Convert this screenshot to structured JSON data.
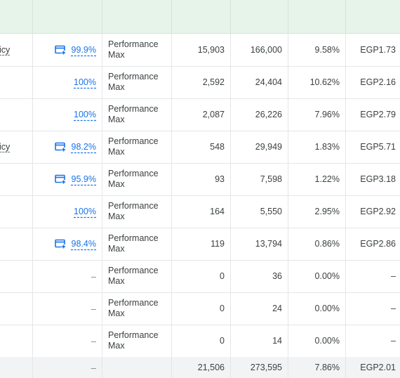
{
  "rows": [
    {
      "name": "icy",
      "icon": "add-recommendation-icon",
      "opt": "99.9%",
      "type1": "Performance",
      "type2": "Max",
      "clicks": "15,903",
      "impr": "166,000",
      "ctr": "9.58%",
      "cpc": "EGP1.73"
    },
    {
      "name": "",
      "icon": "",
      "opt": "100%",
      "type1": "Performance",
      "type2": "Max",
      "clicks": "2,592",
      "impr": "24,404",
      "ctr": "10.62%",
      "cpc": "EGP2.16"
    },
    {
      "name": "",
      "icon": "",
      "opt": "100%",
      "type1": "Performance",
      "type2": "Max",
      "clicks": "2,087",
      "impr": "26,226",
      "ctr": "7.96%",
      "cpc": "EGP2.79"
    },
    {
      "name": "icy",
      "icon": "add-recommendation-icon",
      "opt": "98.2%",
      "type1": "Performance",
      "type2": "Max",
      "clicks": "548",
      "impr": "29,949",
      "ctr": "1.83%",
      "cpc": "EGP5.71"
    },
    {
      "name": "",
      "icon": "add-recommendation-icon",
      "opt": "95.9%",
      "type1": "Performance",
      "type2": "Max",
      "clicks": "93",
      "impr": "7,598",
      "ctr": "1.22%",
      "cpc": "EGP3.18"
    },
    {
      "name": "",
      "icon": "",
      "opt": "100%",
      "type1": "Performance",
      "type2": "Max",
      "clicks": "164",
      "impr": "5,550",
      "ctr": "2.95%",
      "cpc": "EGP2.92"
    },
    {
      "name": "",
      "icon": "add-recommendation-icon",
      "opt": "98.4%",
      "type1": "Performance",
      "type2": "Max",
      "clicks": "119",
      "impr": "13,794",
      "ctr": "0.86%",
      "cpc": "EGP2.86"
    },
    {
      "name": "",
      "icon": "",
      "opt": "–",
      "type1": "Performance",
      "type2": "Max",
      "clicks": "0",
      "impr": "36",
      "ctr": "0.00%",
      "cpc": "–"
    },
    {
      "name": "",
      "icon": "",
      "opt": "–",
      "type1": "Performance",
      "type2": "Max",
      "clicks": "0",
      "impr": "24",
      "ctr": "0.00%",
      "cpc": "–"
    },
    {
      "name": "",
      "icon": "",
      "opt": "–",
      "type1": "Performance",
      "type2": "Max",
      "clicks": "0",
      "impr": "14",
      "ctr": "0.00%",
      "cpc": "–"
    }
  ],
  "total": {
    "opt": "–",
    "clicks": "21,506",
    "impr": "273,595",
    "ctr": "7.86%",
    "cpc": "EGP2.01"
  },
  "colors": {
    "accent": "#1a73e8",
    "header_bg": "#e6f4ea",
    "footer_bg": "#f1f3f4"
  }
}
